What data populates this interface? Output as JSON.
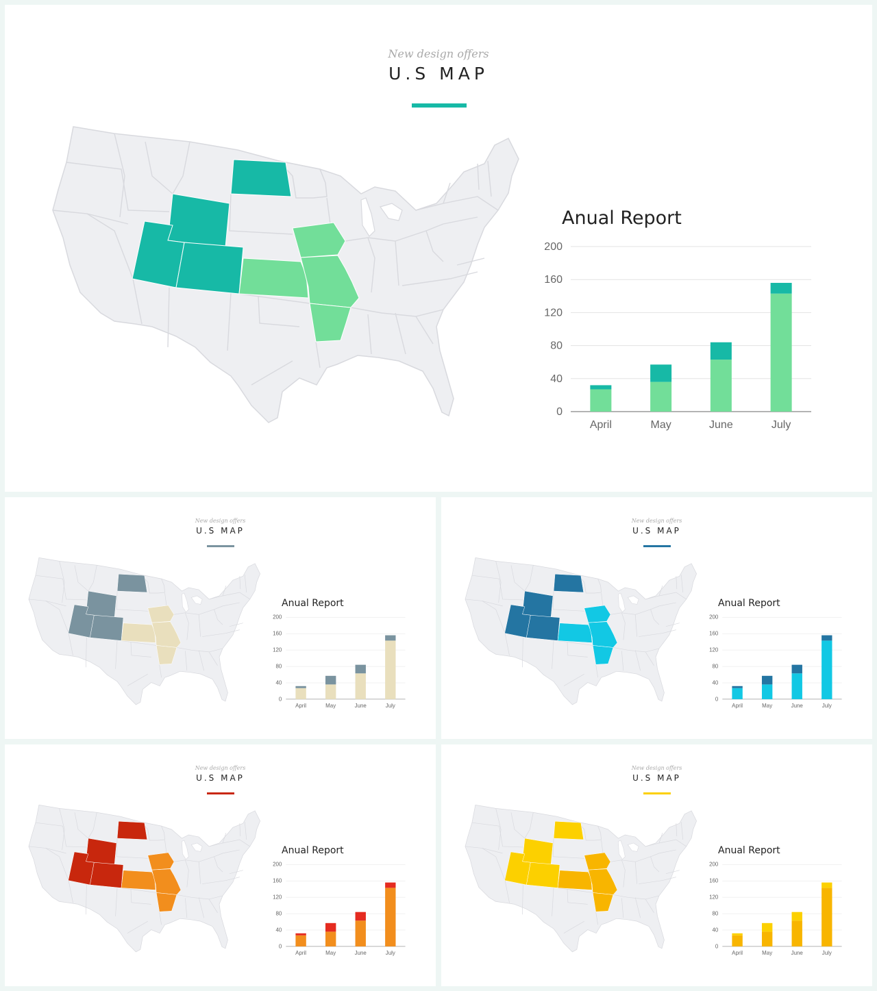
{
  "slides": [
    {
      "id": "main",
      "pre_title": "New design offers",
      "title": "U.S MAP",
      "report_title": "Anual Report",
      "colors": {
        "dark": "#17b9a6",
        "light": "#72de99",
        "rule": "#17b9a6"
      }
    },
    {
      "id": "s1",
      "pre_title": "New design offers",
      "title": "U.S MAP",
      "report_title": "Anual Report",
      "colors": {
        "dark": "#7a939f",
        "light": "#e9dfbd",
        "rule": "#7a939f"
      }
    },
    {
      "id": "s2",
      "pre_title": "New design offers",
      "title": "U.S MAP",
      "report_title": "Anual Report",
      "colors": {
        "dark": "#2475a2",
        "light": "#12c8e4",
        "rule": "#2475a2"
      }
    },
    {
      "id": "s3",
      "pre_title": "New design offers",
      "title": "U.S MAP",
      "report_title": "Anual Report",
      "colors": {
        "dark": "#c8270d",
        "light": "#f28e1d",
        "top": "#e52b20",
        "rule": "#c8270d"
      }
    },
    {
      "id": "s4",
      "pre_title": "New design offers",
      "title": "U.S MAP",
      "report_title": "Anual Report",
      "colors": {
        "dark": "#fcd000",
        "light": "#f8b500",
        "rule": "#fcd000"
      }
    }
  ],
  "chart_data": {
    "type": "bar",
    "stacked": true,
    "title": "Anual Report",
    "categories": [
      "April",
      "May",
      "June",
      "July"
    ],
    "series": [
      {
        "values": [
          27,
          36,
          63,
          143
        ]
      },
      {
        "values": [
          5,
          21,
          21,
          13
        ]
      }
    ],
    "ylim": [
      0,
      200
    ],
    "yticks": [
      0,
      40,
      80,
      120,
      160,
      200
    ],
    "grid": true
  }
}
